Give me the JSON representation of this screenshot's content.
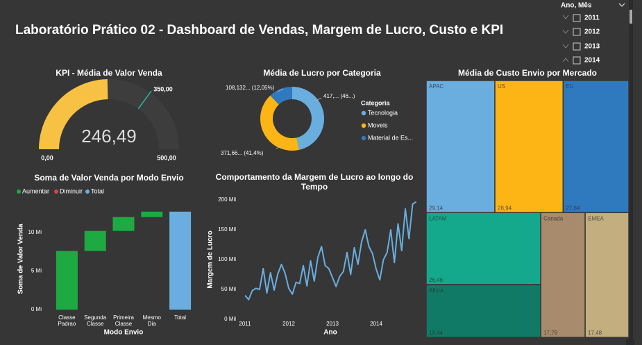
{
  "header": {
    "title": "Laboratório Prático 02 - Dashboard de Vendas, Margem de Lucro, Custo e KPI"
  },
  "slicer": {
    "title": "Ano, Mês",
    "items": [
      "2011",
      "2012",
      "2013",
      "2014"
    ]
  },
  "chart_data": [
    {
      "type": "gauge",
      "title": "KPI - Média de Valor Venda",
      "value": 246.49,
      "value_label": "246,49",
      "min": {
        "value": 0,
        "label": "0,00"
      },
      "max": {
        "value": 500,
        "label": "500,00"
      },
      "target": {
        "value": 350,
        "label": "350,00"
      },
      "color": "#F7C244",
      "target_color": "#2BB39A"
    },
    {
      "type": "donut",
      "title": "Média de Lucro por Categoria",
      "legend_title": "Categoria",
      "categories": [
        "Tecnologia",
        "Moveis",
        "Material de Es..."
      ],
      "values": [
        417,
        371.66,
        108.132
      ],
      "value_labels": [
        "417,... (46...)",
        "371,66... (41,4%)",
        "108,132... (12,05%)"
      ],
      "colors": [
        "#6AAEE0",
        "#FDB515",
        "#2F7ABF"
      ]
    },
    {
      "type": "waterfall",
      "title": "Soma de Valor Venda por Modo Envio",
      "legend": [
        {
          "name": "Aumentar",
          "color": "#1DAA42"
        },
        {
          "name": "Diminuir",
          "color": "#D64550"
        },
        {
          "name": "Total",
          "color": "#6AAEE0"
        }
      ],
      "categories": [
        "Classe Padrao",
        "Segunda Classe",
        "Primeira Classe",
        "Mesmo Dia",
        "Total"
      ],
      "values": [
        7.6,
        2.6,
        1.8,
        0.7,
        12.7
      ],
      "ylim": [
        0,
        13.5
      ],
      "yticks": [
        {
          "value": 0,
          "label": "0 Mi"
        },
        {
          "value": 5,
          "label": "5 Mi"
        },
        {
          "value": 10,
          "label": "10 Mi"
        }
      ],
      "xlabel": "Modo Envio",
      "ylabel": "Soma de Valor Venda"
    },
    {
      "type": "line",
      "title": "Comportamento da Margem de Lucro ao longo do Tempo",
      "color": "#6AAEE0",
      "categories": [
        "2011",
        null,
        null,
        null,
        null,
        null,
        null,
        null,
        null,
        null,
        null,
        null,
        "2012",
        null,
        null,
        null,
        null,
        null,
        null,
        null,
        null,
        null,
        null,
        null,
        "2013",
        null,
        null,
        null,
        null,
        null,
        null,
        null,
        null,
        null,
        null,
        null,
        "2014",
        null,
        null,
        null,
        null,
        null,
        null,
        null,
        null,
        null,
        null,
        null
      ],
      "values": [
        40,
        33,
        48,
        52,
        50,
        85,
        44,
        78,
        49,
        76,
        92,
        77,
        52,
        42,
        62,
        60,
        90,
        56,
        98,
        64,
        104,
        122,
        90,
        85,
        70,
        55,
        72,
        80,
        112,
        75,
        120,
        92,
        130,
        150,
        122,
        110,
        84,
        66,
        100,
        112,
        150,
        95,
        160,
        115,
        185,
        135,
        193,
        197
      ],
      "ylim": [
        0,
        200
      ],
      "yticks": [
        {
          "value": 0,
          "label": "0 Mil"
        },
        {
          "value": 50,
          "label": "50 Mil"
        },
        {
          "value": 100,
          "label": "100 Mil"
        },
        {
          "value": 150,
          "label": "150 Mil"
        },
        {
          "value": 200,
          "label": "200 Mil"
        }
      ],
      "xlabel": "Ano",
      "ylabel": "Margem de Lucro"
    },
    {
      "type": "treemap",
      "title": "Média de Custo Envio por Mercado",
      "categories": [
        "APAC",
        "US",
        "EU",
        "LATAM",
        "Africa",
        "Canada",
        "EMEA"
      ],
      "values": [
        29.14,
        28.94,
        27.84,
        26.46,
        19.44,
        17.78,
        17.48
      ],
      "value_labels": [
        "29,14",
        "28,94",
        "27,84",
        "26,46",
        "19,44",
        "17,78",
        "17,48"
      ],
      "colors": [
        "#6AAEE0",
        "#FDB515",
        "#2F7ABF",
        "#14A98C",
        "#117A66",
        "#A88A6C",
        "#C2AE7E"
      ]
    }
  ]
}
